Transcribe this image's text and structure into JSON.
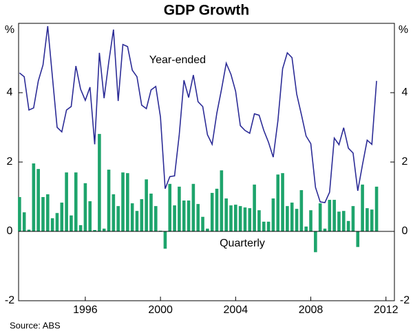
{
  "chart_data": {
    "type": "bar",
    "title": "GDP Growth",
    "y_unit": "%",
    "source": "Source: ABS",
    "x": [
      1992.5,
      1992.75,
      1993,
      1993.25,
      1993.5,
      1993.75,
      1994,
      1994.25,
      1994.5,
      1994.75,
      1995,
      1995.25,
      1995.5,
      1995.75,
      1996,
      1996.25,
      1996.5,
      1996.75,
      1997,
      1997.25,
      1997.5,
      1997.75,
      1998,
      1998.25,
      1998.5,
      1998.75,
      1999,
      1999.25,
      1999.5,
      1999.75,
      2000,
      2000.25,
      2000.5,
      2000.75,
      2001,
      2001.25,
      2001.5,
      2001.75,
      2002,
      2002.25,
      2002.5,
      2002.75,
      2003,
      2003.25,
      2003.5,
      2003.75,
      2004,
      2004.25,
      2004.5,
      2004.75,
      2005,
      2005.25,
      2005.5,
      2005.75,
      2006,
      2006.25,
      2006.5,
      2006.75,
      2007,
      2007.25,
      2007.5,
      2007.75,
      2008,
      2008.25,
      2008.5,
      2008.75,
      2009,
      2009.25,
      2009.5,
      2009.75,
      2010,
      2010.25,
      2010.5,
      2010.75,
      2011,
      2011.25,
      2011.5
    ],
    "series": [
      {
        "name": "Quarterly",
        "type": "bar",
        "color": "#1ea46c",
        "values": [
          0.99,
          0.55,
          0.05,
          1.96,
          1.8,
          0.99,
          1.07,
          0.38,
          0.53,
          0.83,
          1.7,
          0.46,
          1.7,
          0.18,
          1.39,
          0.87,
          0.04,
          2.81,
          0.08,
          1.78,
          1.07,
          0.73,
          1.7,
          1.68,
          0.81,
          0.59,
          0.93,
          1.5,
          1.09,
          0.73,
          0.02,
          -0.5,
          1.37,
          0.75,
          1.29,
          0.89,
          0.89,
          1.37,
          0.79,
          0.42,
          0.08,
          1.11,
          1.23,
          1.76,
          0.95,
          0.75,
          0.77,
          0.73,
          0.69,
          0.67,
          1.35,
          0.61,
          0.28,
          0.28,
          0.95,
          1.64,
          1.68,
          0.73,
          0.83,
          0.65,
          1.19,
          0.14,
          0.61,
          -0.6,
          0.81,
          0.08,
          0.91,
          0.91,
          0.57,
          0.59,
          0.3,
          0.73,
          -0.45,
          1.35,
          0.67,
          0.63,
          1.29
        ]
      },
      {
        "name": "Year-ended",
        "type": "line",
        "color": "#2b2b96",
        "values": [
          4.57,
          4.46,
          3.5,
          3.56,
          4.34,
          4.8,
          5.92,
          4.46,
          3.0,
          2.87,
          3.5,
          3.6,
          4.77,
          4.1,
          3.78,
          4.16,
          2.51,
          5.15,
          3.84,
          4.89,
          5.82,
          3.76,
          5.39,
          5.33,
          4.65,
          4.46,
          3.64,
          3.54,
          4.08,
          4.18,
          3.3,
          1.23,
          1.58,
          1.6,
          2.79,
          4.36,
          3.86,
          4.51,
          3.74,
          3.6,
          2.79,
          2.51,
          3.41,
          4.1,
          4.85,
          4.53,
          4.04,
          3.05,
          2.91,
          2.83,
          3.39,
          3.35,
          2.91,
          2.57,
          2.14,
          3.19,
          4.69,
          5.15,
          5.01,
          3.96,
          3.37,
          2.75,
          2.53,
          1.27,
          0.85,
          0.83,
          1.13,
          2.69,
          2.5,
          2.99,
          2.4,
          2.26,
          1.17,
          1.92,
          2.63,
          2.51,
          4.34
        ]
      }
    ],
    "xlim": [
      1992.45,
      2012.45
    ],
    "xticks": [
      1996,
      2000,
      2004,
      2008,
      2012
    ],
    "ylim": [
      -2,
      6
    ],
    "yticks": [
      -2,
      0,
      2,
      4
    ],
    "grid": false
  }
}
